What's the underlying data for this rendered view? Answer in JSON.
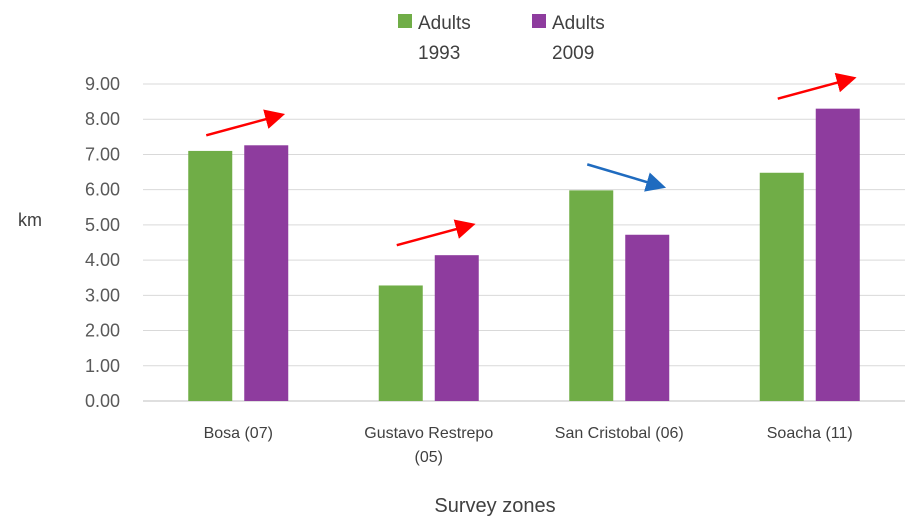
{
  "chart_data": {
    "type": "bar",
    "categories": [
      [
        "Bosa (07)"
      ],
      [
        "Gustavo Restrepo",
        "(05)"
      ],
      [
        "San Cristobal (06)"
      ],
      [
        "Soacha (11)"
      ]
    ],
    "series": [
      {
        "name": [
          "Adults",
          "1993"
        ],
        "color": "#70ad47",
        "values": [
          7.1,
          3.28,
          5.98,
          6.48
        ]
      },
      {
        "name": [
          "Adults",
          "2009"
        ],
        "color": "#8e3c9e",
        "values": [
          7.26,
          4.14,
          4.72,
          8.3
        ]
      }
    ],
    "ylabel": "km",
    "xlabel": "Survey zones",
    "ylim": [
      0,
      9
    ],
    "yticks": [
      "0.00",
      "1.00",
      "2.00",
      "3.00",
      "4.00",
      "5.00",
      "6.00",
      "7.00",
      "8.00",
      "9.00"
    ],
    "grid": true,
    "legend_position": "top",
    "trend_arrows": [
      {
        "category": "Bosa (07)",
        "direction": "up",
        "color": "#ff0000"
      },
      {
        "category": "Gustavo Restrepo (05)",
        "direction": "up",
        "color": "#ff0000"
      },
      {
        "category": "San Cristobal (06)",
        "direction": "down",
        "color": "#1f6bbf"
      },
      {
        "category": "Soacha (11)",
        "direction": "up",
        "color": "#ff0000"
      }
    ]
  }
}
